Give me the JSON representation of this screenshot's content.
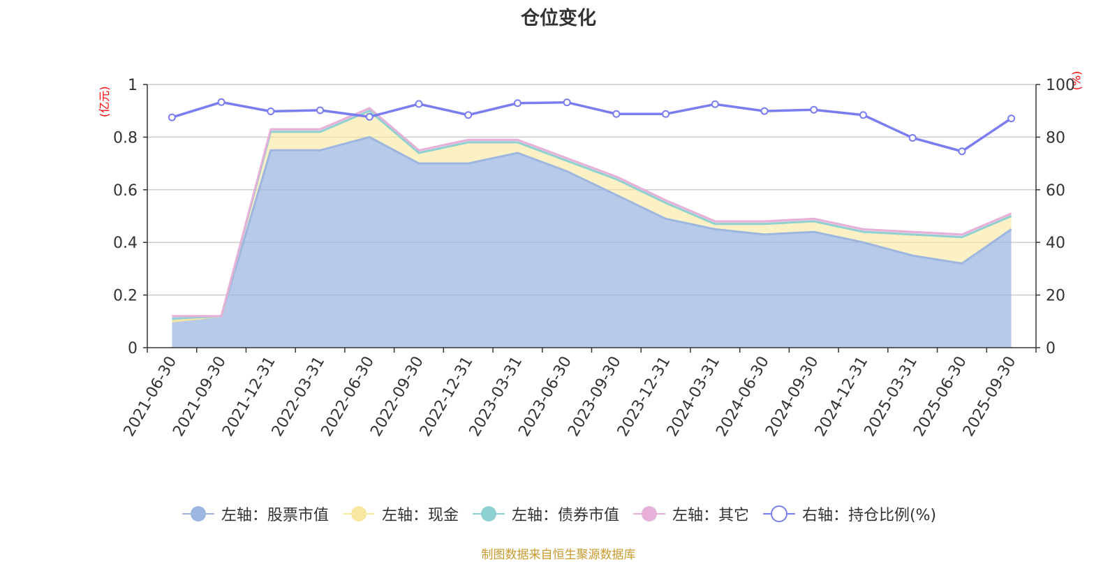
{
  "chart_data": {
    "type": "area",
    "title": "仓位变化",
    "ylabel_left": "(亿元)",
    "ylabel_right": "(%)",
    "x": [
      "2021-06-30",
      "2021-09-30",
      "2021-12-31",
      "2022-03-31",
      "2022-06-30",
      "2022-09-30",
      "2022-12-31",
      "2023-03-31",
      "2023-06-30",
      "2023-09-30",
      "2023-12-31",
      "2024-03-31",
      "2024-06-30",
      "2024-09-30",
      "2024-12-31",
      "2025-03-31",
      "2025-06-30",
      "2025-09-30"
    ],
    "ylim_left": [
      0,
      1
    ],
    "yticks_left": [
      "0",
      "0.2",
      "0.4",
      "0.6",
      "0.8",
      "1"
    ],
    "ylim_right": [
      0,
      100
    ],
    "yticks_right": [
      "0",
      "20",
      "40",
      "60",
      "80",
      "100"
    ],
    "grid": true,
    "legend_position": "bottom",
    "series": [
      {
        "name": "左轴：股票市值",
        "axis": "left",
        "stacked": true,
        "color": "#9db6e0",
        "values": [
          0.1,
          0.12,
          0.75,
          0.75,
          0.8,
          0.7,
          0.7,
          0.74,
          0.67,
          0.58,
          0.49,
          0.45,
          0.43,
          0.44,
          0.4,
          0.35,
          0.32,
          0.45
        ]
      },
      {
        "name": "左轴：现金",
        "axis": "left",
        "stacked": true,
        "color": "#f9e79f",
        "values": [
          0.0,
          0.0,
          0.07,
          0.07,
          0.1,
          0.04,
          0.08,
          0.04,
          0.04,
          0.06,
          0.06,
          0.02,
          0.04,
          0.04,
          0.04,
          0.08,
          0.1,
          0.05
        ]
      },
      {
        "name": "左轴：债券市值",
        "axis": "left",
        "stacked": true,
        "color": "#8fd1d2",
        "values": [
          0.01,
          0.0,
          0.0,
          0.0,
          0.0,
          0.0,
          0.0,
          0.0,
          0.0,
          0.0,
          0.0,
          0.0,
          0.0,
          0.0,
          0.0,
          0.0,
          0.0,
          0.0
        ]
      },
      {
        "name": "左轴：其它",
        "axis": "left",
        "stacked": true,
        "color": "#e6b0d8",
        "values": [
          0.01,
          0.0,
          0.01,
          0.01,
          0.01,
          0.01,
          0.01,
          0.01,
          0.01,
          0.01,
          0.01,
          0.01,
          0.01,
          0.01,
          0.01,
          0.01,
          0.01,
          0.01
        ]
      },
      {
        "name": "右轴：持仓比例(%)",
        "axis": "right",
        "stacked": false,
        "color": "#7a7df0",
        "values": [
          87.5,
          93.3,
          89.8,
          90.2,
          87.7,
          92.6,
          88.4,
          92.9,
          93.2,
          88.8,
          88.8,
          92.5,
          89.9,
          90.4,
          88.4,
          79.7,
          74.6,
          87.1
        ]
      }
    ]
  },
  "source_text": "制图数据来自恒生聚源数据库"
}
